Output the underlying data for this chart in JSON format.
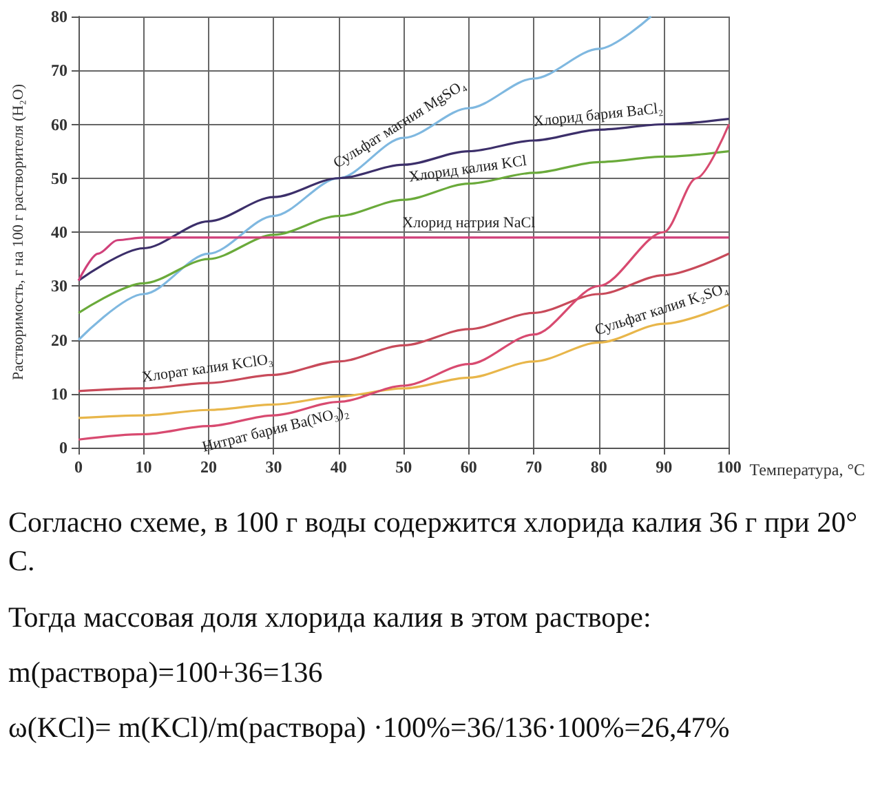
{
  "chart_data": {
    "type": "line",
    "ylabel": "Растворимость, г на 100 г растворителя (H₂O)",
    "xlabel": "Температура, °C",
    "xlim": [
      0,
      100
    ],
    "xticks": [
      0,
      10,
      20,
      30,
      40,
      50,
      60,
      70,
      80,
      90,
      100
    ],
    "ylim": [
      0,
      80
    ],
    "yticks": [
      0,
      10,
      20,
      30,
      40,
      50,
      60,
      70,
      80
    ],
    "grid": true,
    "series": [
      {
        "name": "Сульфат магния MgSO₄",
        "color": "#7fb8e0",
        "x": [
          0,
          10,
          20,
          30,
          40,
          50,
          60,
          70,
          80,
          88
        ],
        "values": [
          20,
          28.5,
          36,
          43,
          50,
          57.5,
          63,
          68.5,
          74,
          80
        ]
      },
      {
        "name": "Хлорид бария BaCl₂",
        "color": "#3c2f6a",
        "x": [
          0,
          10,
          20,
          30,
          40,
          50,
          60,
          70,
          80,
          90,
          100
        ],
        "values": [
          31,
          37,
          42,
          46.5,
          50,
          52.5,
          55,
          57,
          59,
          60,
          61
        ]
      },
      {
        "name": "Хлорид калия KCl",
        "color": "#6aaa3a",
        "x": [
          0,
          10,
          20,
          30,
          40,
          50,
          60,
          70,
          80,
          90,
          100
        ],
        "values": [
          25,
          30.5,
          35,
          39.5,
          43,
          46,
          49,
          51,
          53,
          54,
          55
        ]
      },
      {
        "name": "Хлорид натрия NaCl",
        "color": "#d0407a",
        "x": [
          0,
          3,
          6,
          10,
          20,
          30,
          40,
          50,
          60,
          70,
          80,
          90,
          100
        ],
        "values": [
          31,
          36,
          38.5,
          39,
          39,
          39,
          39,
          39,
          39,
          39,
          39,
          39,
          39
        ]
      },
      {
        "name": "Хлорат калия KClO₃",
        "color": "#c84a5a",
        "x": [
          0,
          10,
          20,
          30,
          40,
          50,
          60,
          70,
          80,
          90,
          100
        ],
        "values": [
          10.5,
          11,
          12,
          13.5,
          16,
          19,
          22,
          25,
          28.5,
          32,
          36
        ]
      },
      {
        "name": "Сульфат калия K₂SO₄",
        "color": "#e8b64a",
        "x": [
          0,
          10,
          20,
          30,
          40,
          50,
          60,
          70,
          80,
          90,
          100
        ],
        "values": [
          5.5,
          6,
          7,
          8,
          9.5,
          11,
          13,
          16,
          19.5,
          23,
          26.5
        ]
      },
      {
        "name": "Нитрат бария Ba(NO₃)₂",
        "color": "#d84a70",
        "x": [
          0,
          10,
          20,
          30,
          40,
          50,
          60,
          70,
          80,
          90,
          95,
          100
        ],
        "values": [
          1.5,
          2.5,
          4,
          6,
          8.5,
          11.5,
          15.5,
          21,
          30,
          40,
          50,
          60
        ]
      }
    ],
    "annotations": [
      "Согласно схеме, в 100 г воды содержится хлорида калия 36 г при 20° C.",
      "Тогда массовая доля хлорида калия в этом растворе:",
      "m(раствора)=100+36=136",
      "ω(KCl)= m(KCl)/m(раствора) ·100%=36/136·100%=26,47%"
    ]
  }
}
